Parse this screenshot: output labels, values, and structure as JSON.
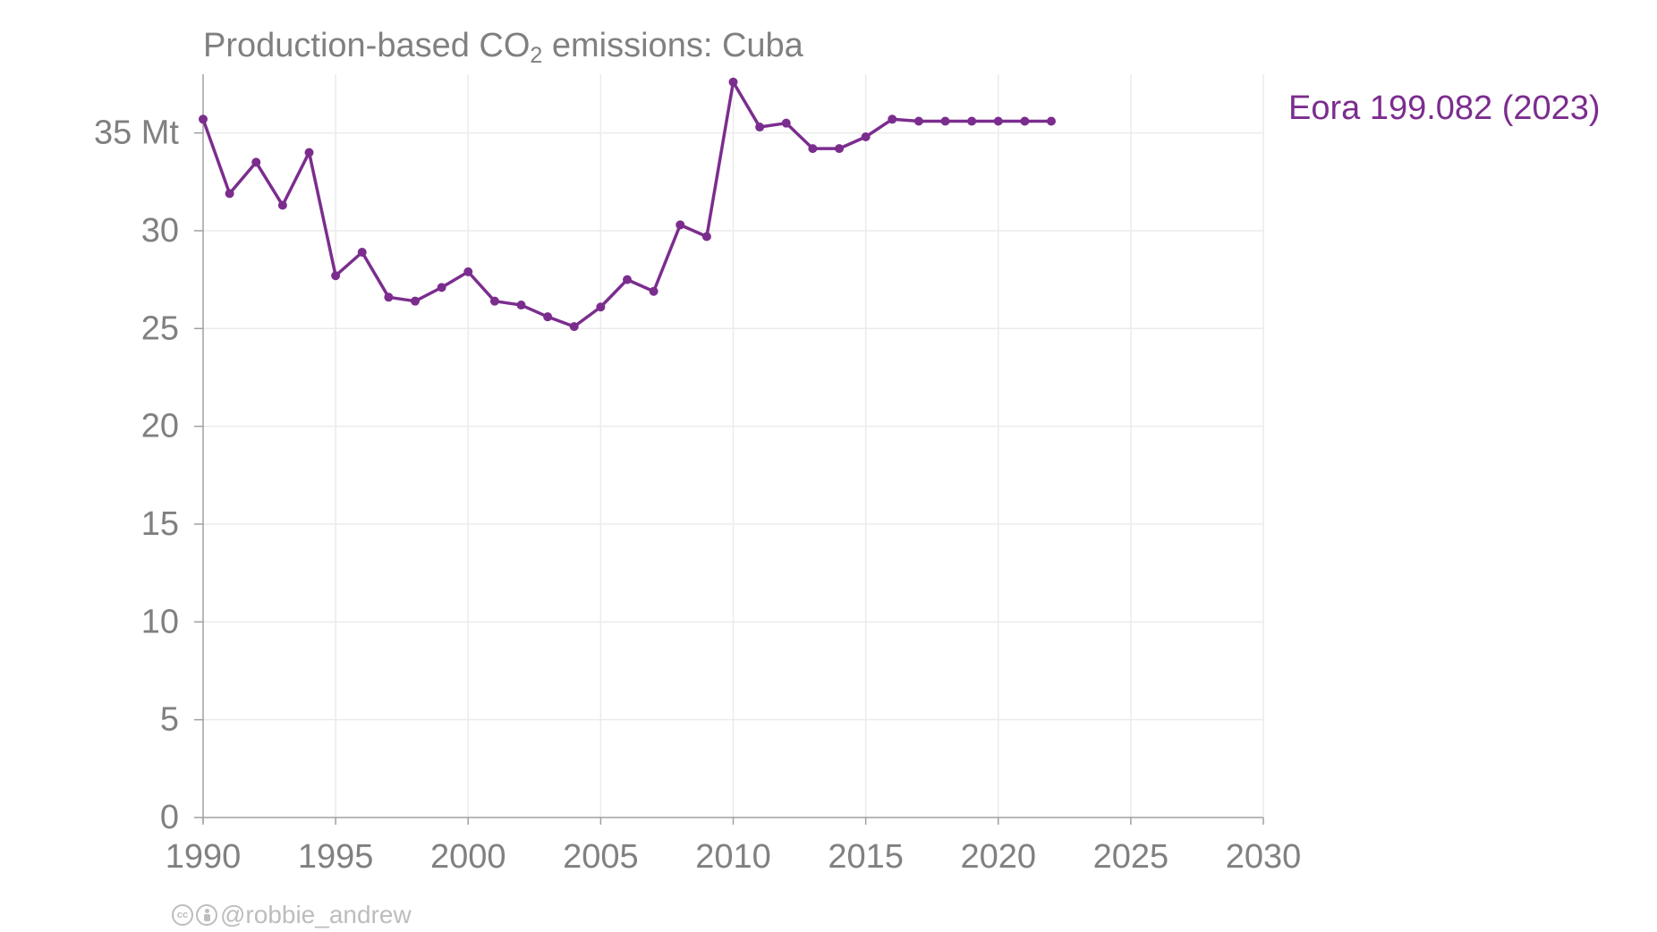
{
  "title": {
    "prefix": "Production-based CO",
    "subscript": "2",
    "suffix": " emissions: Cuba"
  },
  "credit": {
    "cc_icon": "creative-commons-icon",
    "by_icon": "attribution-icon",
    "handle": "@robbie_andrew"
  },
  "colors": {
    "series": "#7b2d8e",
    "axis_text": "#808080",
    "grid": "#ebebeb",
    "axis_line": "#a0a0a0",
    "credit": "#bdbdbd"
  },
  "chart_data": {
    "type": "line",
    "title": "Production-based CO2 emissions: Cuba",
    "xlabel": "",
    "ylabel": "",
    "y_unit": "Mt",
    "xlim": [
      1990,
      2030
    ],
    "ylim": [
      0,
      38
    ],
    "x_ticks": [
      1990,
      1995,
      2000,
      2005,
      2010,
      2015,
      2020,
      2025,
      2030
    ],
    "y_ticks": [
      0,
      5,
      10,
      15,
      20,
      25,
      30,
      35
    ],
    "y_tick_labels": [
      "0",
      "5",
      "10",
      "15",
      "20",
      "25",
      "30",
      "35 Mt"
    ],
    "grid": true,
    "series": [
      {
        "name": "Eora 199.082 (2023)",
        "label_position": "right-end",
        "x": [
          1990,
          1991,
          1992,
          1993,
          1994,
          1995,
          1996,
          1997,
          1998,
          1999,
          2000,
          2001,
          2002,
          2003,
          2004,
          2005,
          2006,
          2007,
          2008,
          2009,
          2010,
          2011,
          2012,
          2013,
          2014,
          2015,
          2016,
          2017,
          2018,
          2019,
          2020,
          2021,
          2022
        ],
        "values": [
          35.7,
          31.9,
          33.5,
          31.3,
          34.0,
          27.7,
          28.9,
          26.6,
          26.4,
          27.1,
          27.9,
          26.4,
          26.2,
          25.6,
          25.1,
          26.1,
          27.5,
          26.9,
          30.3,
          29.7,
          37.6,
          35.3,
          35.5,
          34.2,
          34.2,
          34.8,
          35.7,
          35.6,
          35.6,
          35.6,
          35.6,
          35.6,
          35.6
        ]
      }
    ]
  }
}
